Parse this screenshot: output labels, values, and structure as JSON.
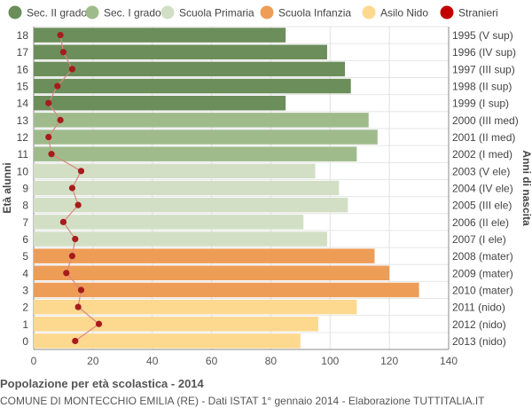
{
  "chart_data": {
    "type": "bar",
    "orientation": "horizontal",
    "title": "Popolazione per età scolastica - 2014",
    "subtitle": "COMUNE DI MONTECCHIO EMILIA (RE) - Dati ISTAT 1° gennaio 2014 - Elaborazione TUTTITALIA.IT",
    "ylabel_left": "Età alunni",
    "ylabel_right": "Anni di nascita",
    "xlim": [
      0,
      140
    ],
    "x_ticks": [
      "0",
      "20",
      "40",
      "60",
      "80",
      "100",
      "120",
      "140"
    ],
    "grid": true,
    "legend_position": "top",
    "legend": [
      {
        "name": "Sec. II grado",
        "color": "#6b8e5a"
      },
      {
        "name": "Sec. I grado",
        "color": "#9fbb8c"
      },
      {
        "name": "Scuola Primaria",
        "color": "#d3dfc5"
      },
      {
        "name": "Scuola Infanzia",
        "color": "#ee9d57"
      },
      {
        "name": "Asilo Nido",
        "color": "#fdd88f"
      },
      {
        "name": "Stranieri",
        "color": "#c00000"
      }
    ],
    "ages": [
      "18",
      "17",
      "16",
      "15",
      "14",
      "13",
      "12",
      "11",
      "10",
      "9",
      "8",
      "7",
      "6",
      "5",
      "4",
      "3",
      "2",
      "1",
      "0"
    ],
    "birth_years": [
      "1995 (V sup)",
      "1996 (IV sup)",
      "1997 (III sup)",
      "1998 (II sup)",
      "1999 (I sup)",
      "2000 (III med)",
      "2001 (II med)",
      "2002 (I med)",
      "2003 (V ele)",
      "2004 (IV ele)",
      "2005 (III ele)",
      "2006 (II ele)",
      "2007 (I ele)",
      "2008 (mater)",
      "2009 (mater)",
      "2010 (mater)",
      "2011 (nido)",
      "2012 (nido)",
      "2013 (nido)"
    ],
    "values": [
      85,
      99,
      105,
      107,
      85,
      113,
      116,
      109,
      95,
      103,
      106,
      91,
      99,
      115,
      120,
      130,
      109,
      96,
      90
    ],
    "categories_group": [
      0,
      0,
      0,
      0,
      0,
      1,
      1,
      1,
      2,
      2,
      2,
      2,
      2,
      3,
      3,
      3,
      4,
      4,
      4
    ],
    "stranieri": [
      9,
      10,
      13,
      8,
      5,
      9,
      5,
      6,
      16,
      13,
      15,
      10,
      14,
      13,
      11,
      16,
      15,
      22,
      14
    ]
  }
}
